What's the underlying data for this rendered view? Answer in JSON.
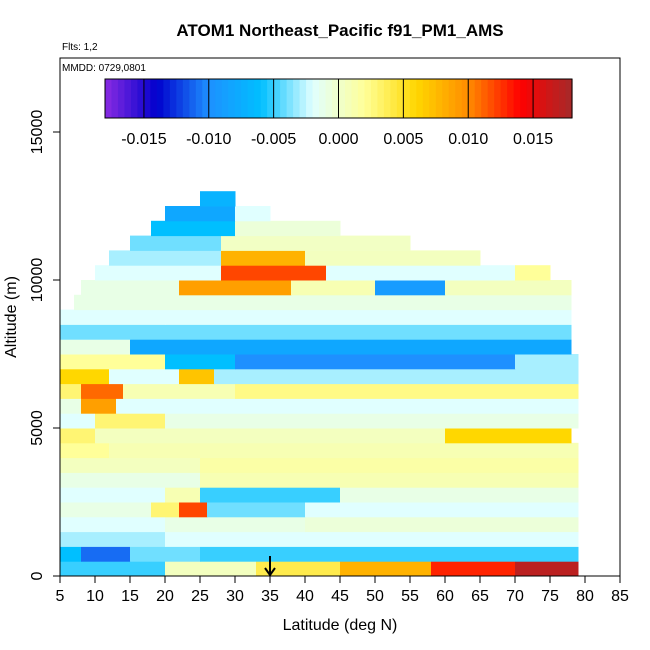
{
  "chart_data": {
    "type": "heatmap",
    "title": "ATOM1 Northeast_Pacific f91_PM1_AMS",
    "flights_label": "Flts: 1,2",
    "mmdd_label": "MMDD: 0729,0801",
    "xlabel": "Latitude (deg N)",
    "ylabel": "Altitude (m)",
    "xlim": [
      5,
      85
    ],
    "ylim": [
      0,
      17500
    ],
    "xticks": [
      5,
      10,
      15,
      20,
      25,
      30,
      35,
      40,
      45,
      50,
      55,
      60,
      65,
      70,
      75,
      80,
      85
    ],
    "yticks": [
      0,
      5000,
      10000,
      15000
    ],
    "colorbar": {
      "range": [
        -0.018,
        0.018
      ],
      "tick_values": [
        -0.015,
        -0.01,
        -0.005,
        0,
        0.005,
        0.01,
        0.015
      ],
      "tick_labels": [
        "-0.015",
        "-0.010",
        "-0.005",
        "0.000",
        "0.005",
        "0.010",
        "0.015"
      ],
      "colors": [
        "#8a2be2",
        "#0000cd",
        "#1e90ff",
        "#00bfff",
        "#e0ffff",
        "#ffff99",
        "#ffd700",
        "#ff8c00",
        "#ff0000",
        "#a52a2a"
      ]
    },
    "grid": false,
    "legend": "top-inside",
    "marker": {
      "latitude": 35,
      "altitude": 0,
      "label": "arrow"
    },
    "bands": [
      {
        "alt": [
          0,
          500
        ],
        "segments": [
          [
            5,
            20,
            -0.005
          ],
          [
            20,
            33,
            0.0005
          ],
          [
            33,
            45,
            0.004
          ],
          [
            45,
            58,
            0.008
          ],
          [
            58,
            70,
            0.013
          ],
          [
            70,
            79,
            0.017
          ]
        ]
      },
      {
        "alt": [
          500,
          1000
        ],
        "segments": [
          [
            5,
            8,
            -0.006
          ],
          [
            8,
            15,
            -0.011
          ],
          [
            15,
            25,
            -0.004
          ],
          [
            25,
            79,
            -0.005
          ]
        ]
      },
      {
        "alt": [
          1000,
          1500
        ],
        "segments": [
          [
            5,
            20,
            -0.003
          ],
          [
            20,
            79,
            -0.002
          ]
        ]
      },
      {
        "alt": [
          1500,
          2000
        ],
        "segments": [
          [
            5,
            20,
            -0.002
          ],
          [
            20,
            40,
            -0.001
          ],
          [
            40,
            79,
            -0.0005
          ]
        ]
      },
      {
        "alt": [
          2000,
          2500
        ],
        "segments": [
          [
            5,
            18,
            -0.001
          ],
          [
            18,
            22,
            0.003
          ],
          [
            22,
            26,
            0.012
          ],
          [
            26,
            40,
            -0.004
          ],
          [
            40,
            79,
            -0.002
          ]
        ]
      },
      {
        "alt": [
          2500,
          3000
        ],
        "segments": [
          [
            5,
            20,
            -0.002
          ],
          [
            20,
            25,
            0.001
          ],
          [
            25,
            45,
            -0.005
          ],
          [
            45,
            79,
            -0.001
          ]
        ]
      },
      {
        "alt": [
          3000,
          3500
        ],
        "segments": [
          [
            5,
            25,
            -0.001
          ],
          [
            25,
            79,
            0.001
          ]
        ]
      },
      {
        "alt": [
          3500,
          4000
        ],
        "segments": [
          [
            5,
            25,
            0.0005
          ],
          [
            25,
            79,
            0.0015
          ]
        ]
      },
      {
        "alt": [
          4000,
          4500
        ],
        "segments": [
          [
            5,
            12,
            0.002
          ],
          [
            12,
            79,
            0.001
          ]
        ]
      },
      {
        "alt": [
          4500,
          5000
        ],
        "segments": [
          [
            5,
            10,
            0.003
          ],
          [
            10,
            60,
            0.0005
          ],
          [
            60,
            78,
            0.006
          ]
        ]
      },
      {
        "alt": [
          5000,
          5500
        ],
        "segments": [
          [
            5,
            10,
            -0.002
          ],
          [
            10,
            20,
            0.003
          ],
          [
            20,
            79,
            -0.001
          ]
        ]
      },
      {
        "alt": [
          5500,
          6000
        ],
        "segments": [
          [
            5,
            8,
            -0.001
          ],
          [
            8,
            13,
            0.009
          ],
          [
            13,
            79,
            -0.002
          ]
        ]
      },
      {
        "alt": [
          6000,
          6500
        ],
        "segments": [
          [
            5,
            8,
            0.003
          ],
          [
            8,
            14,
            0.011
          ],
          [
            14,
            30,
            0.001
          ],
          [
            30,
            79,
            0.0025
          ]
        ]
      },
      {
        "alt": [
          6500,
          7000
        ],
        "segments": [
          [
            5,
            12,
            0.006
          ],
          [
            12,
            22,
            -0.002
          ],
          [
            22,
            27,
            0.007
          ],
          [
            27,
            79,
            -0.003
          ]
        ]
      },
      {
        "alt": [
          7000,
          7500
        ],
        "segments": [
          [
            5,
            20,
            0.002
          ],
          [
            20,
            30,
            -0.006
          ],
          [
            30,
            70,
            -0.01
          ],
          [
            70,
            79,
            -0.003
          ]
        ]
      },
      {
        "alt": [
          7500,
          8000
        ],
        "segments": [
          [
            5,
            15,
            -0.001
          ],
          [
            15,
            78,
            -0.008
          ]
        ]
      },
      {
        "alt": [
          8000,
          8500
        ],
        "segments": [
          [
            5,
            15,
            -0.004
          ],
          [
            15,
            78,
            -0.004
          ]
        ]
      },
      {
        "alt": [
          8500,
          9000
        ],
        "segments": [
          [
            5,
            20,
            -0.002
          ],
          [
            20,
            78,
            -0.002
          ]
        ]
      },
      {
        "alt": [
          9000,
          9500
        ],
        "segments": [
          [
            7,
            25,
            -0.001
          ],
          [
            25,
            78,
            -0.001
          ]
        ]
      },
      {
        "alt": [
          9500,
          10000
        ],
        "segments": [
          [
            8,
            22,
            -0.001
          ],
          [
            22,
            38,
            0.009
          ],
          [
            38,
            50,
            0.001
          ],
          [
            50,
            60,
            -0.009
          ],
          [
            60,
            78,
            0.0005
          ]
        ]
      },
      {
        "alt": [
          10000,
          10500
        ],
        "segments": [
          [
            10,
            28,
            -0.002
          ],
          [
            28,
            43,
            0.012
          ],
          [
            43,
            70,
            -0.002
          ],
          [
            70,
            75,
            0.002
          ]
        ]
      },
      {
        "alt": [
          10500,
          11000
        ],
        "segments": [
          [
            12,
            28,
            -0.003
          ],
          [
            28,
            40,
            0.008
          ],
          [
            40,
            65,
            0.0005
          ]
        ]
      },
      {
        "alt": [
          11000,
          11500
        ],
        "segments": [
          [
            15,
            28,
            -0.004
          ],
          [
            28,
            55,
            0.0003
          ]
        ]
      },
      {
        "alt": [
          11500,
          12000
        ],
        "segments": [
          [
            18,
            30,
            -0.006
          ],
          [
            30,
            45,
            -0.0005
          ]
        ]
      },
      {
        "alt": [
          12000,
          12500
        ],
        "segments": [
          [
            20,
            30,
            -0.008
          ],
          [
            30,
            35,
            -0.002
          ]
        ]
      },
      {
        "alt": [
          12500,
          13000
        ],
        "segments": [
          [
            25,
            30,
            -0.007
          ]
        ]
      }
    ]
  }
}
